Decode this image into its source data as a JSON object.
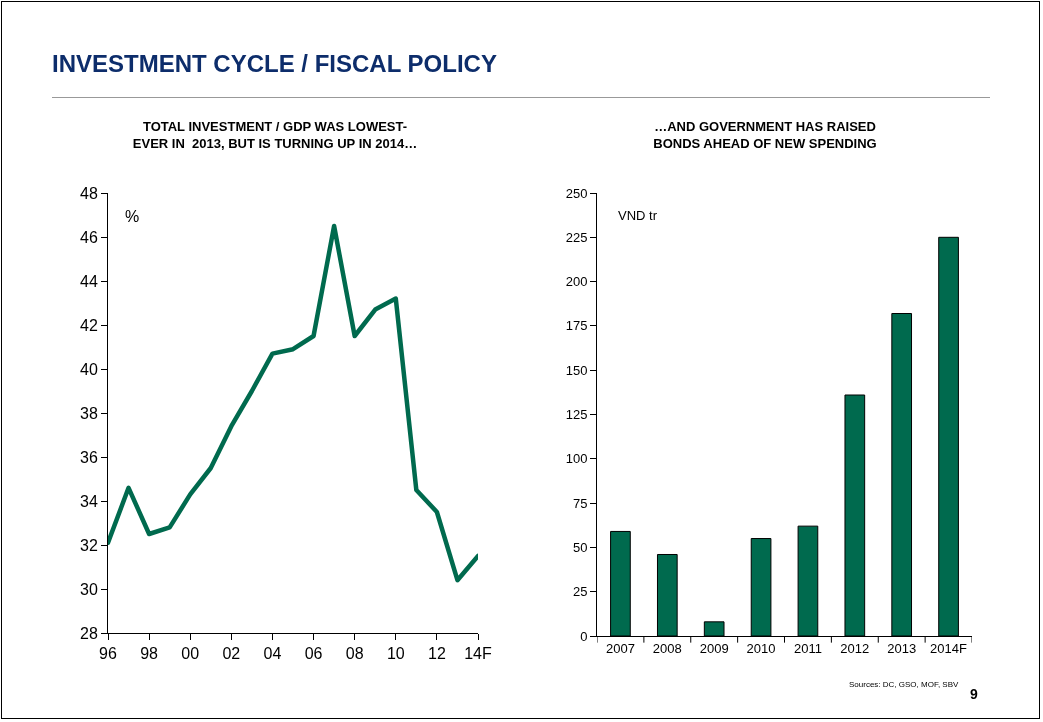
{
  "chart_data": [
    {
      "type": "line",
      "title": "TOTAL INVESTMENT / GDP WAS LOWEST-\nEVER IN  2013, BUT IS TURNING UP IN 2014…",
      "ylabel": "%",
      "categories": [
        "96",
        null,
        "98",
        null,
        "00",
        null,
        "02",
        null,
        "04",
        null,
        "06",
        null,
        "08",
        null,
        "10",
        null,
        "12",
        null,
        "14F"
      ],
      "values": [
        32.1,
        34.6,
        32.5,
        32.8,
        34.3,
        35.5,
        37.4,
        39.0,
        40.7,
        40.9,
        41.5,
        46.5,
        41.5,
        42.7,
        43.2,
        34.5,
        33.5,
        30.4,
        31.5
      ],
      "color": "#006a4e",
      "ylim": [
        28,
        48
      ],
      "yticks": [
        28,
        30,
        32,
        34,
        36,
        38,
        40,
        42,
        44,
        46,
        48
      ],
      "annotations": [
        "INVESTMENT CYCLE / FISCAL POLICY"
      ]
    },
    {
      "type": "bar",
      "title": "…AND GOVERNMENT HAS RAISED\nBONDS AHEAD OF NEW SPENDING",
      "ylabel": "VND tr",
      "categories": [
        "2007",
        "2008",
        "2009",
        "2010",
        "2011",
        "2012",
        "2013",
        "2014F"
      ],
      "values": [
        59,
        46,
        8,
        55,
        62,
        136,
        182,
        225
      ],
      "color": "#006a4e",
      "ylim": [
        0,
        250
      ],
      "yticks": [
        0,
        25,
        50,
        75,
        100,
        125,
        150,
        175,
        200,
        225,
        250
      ],
      "annotations": [
        "Sources: DC, GSO, MOF, SBV",
        "9"
      ]
    }
  ]
}
